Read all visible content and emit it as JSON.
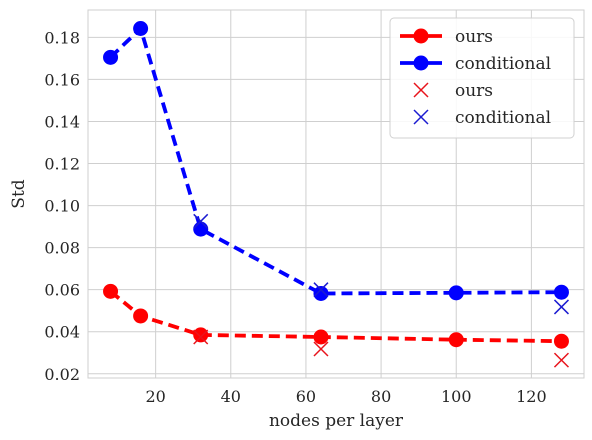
{
  "chart_data": {
    "type": "line",
    "title": "",
    "xlabel": "nodes per layer",
    "ylabel": "Std",
    "xlim": [
      2,
      134
    ],
    "ylim": [
      0.018,
      0.193
    ],
    "xticks": [
      20,
      40,
      60,
      80,
      100,
      120
    ],
    "yticks": [
      0.02,
      0.04,
      0.06,
      0.08,
      0.1,
      0.12,
      0.14,
      0.16,
      0.18
    ],
    "ytick_labels": [
      "0.02",
      "0.04",
      "0.06",
      "0.08",
      "0.10",
      "0.12",
      "0.14",
      "0.16",
      "0.18"
    ],
    "grid": true,
    "legend_position": "top-right",
    "series": [
      {
        "name": "ours",
        "style": "dashed-line-circle",
        "color": "#ff0000",
        "x": [
          8,
          16,
          32,
          64,
          100,
          128
        ],
        "y": [
          0.0592,
          0.0475,
          0.0385,
          0.0375,
          0.0362,
          0.0355
        ]
      },
      {
        "name": "conditional",
        "style": "dashed-line-circle",
        "color": "#0000ff",
        "x": [
          8,
          16,
          32,
          64,
          100,
          128
        ],
        "y": [
          0.1705,
          0.1842,
          0.0888,
          0.0582,
          0.0585,
          0.0588
        ]
      },
      {
        "name": "ours",
        "style": "x-marker",
        "color": "#e8141c",
        "x": [
          32,
          64,
          128
        ],
        "y": [
          0.0375,
          0.0318,
          0.0265
        ]
      },
      {
        "name": "conditional",
        "style": "x-marker",
        "color": "#1b1bd1",
        "x": [
          32,
          64,
          128
        ],
        "y": [
          0.0925,
          0.06,
          0.0518
        ]
      }
    ]
  }
}
